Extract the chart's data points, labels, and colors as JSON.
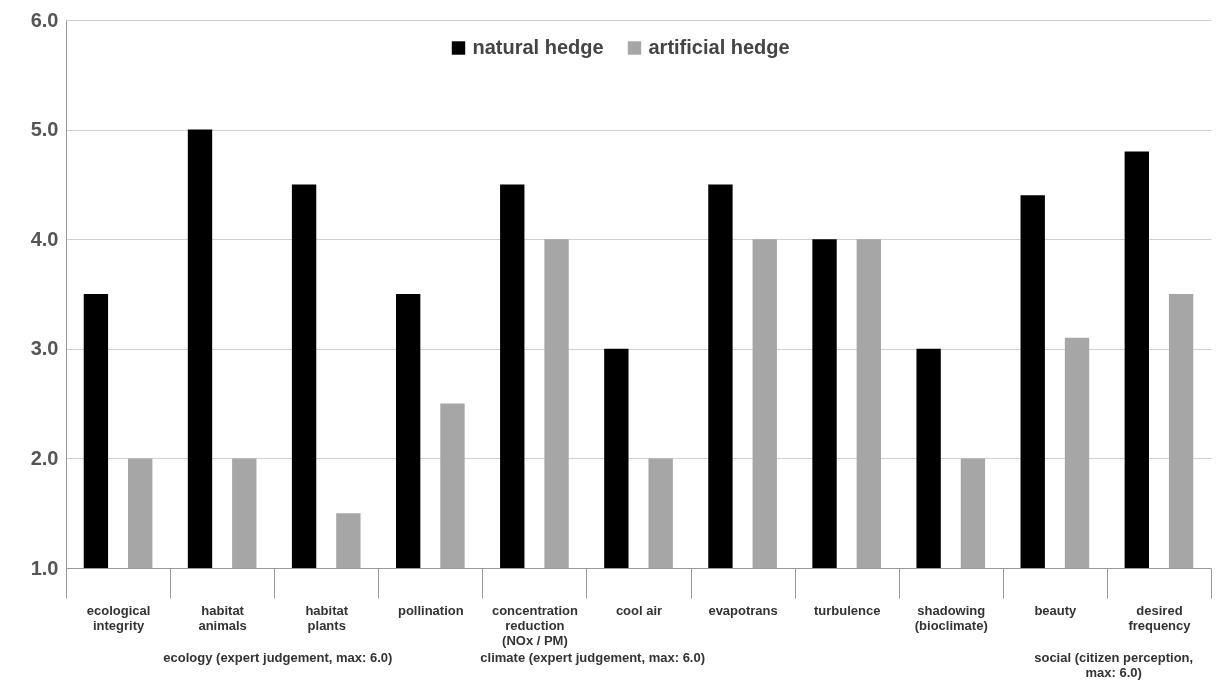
{
  "chart_data": {
    "type": "bar",
    "categories": [
      "ecological integrity",
      "habitat animals",
      "habitat plants",
      "pollination",
      "concentration reduction (NOx / PM)",
      "cool air",
      "evapotrans",
      "turbulence",
      "shadowing (bioclimate)",
      "beauty",
      "desired frequency"
    ],
    "series": [
      {
        "name": "natural hedge",
        "color": "#000000",
        "values": [
          3.5,
          5.0,
          4.5,
          3.5,
          4.5,
          3.0,
          4.5,
          4.0,
          3.0,
          4.4,
          4.8
        ]
      },
      {
        "name": "artificial hedge",
        "color": "#a6a6a6",
        "values": [
          2.0,
          2.0,
          1.5,
          2.5,
          4.0,
          2.0,
          4.0,
          4.0,
          2.0,
          3.1,
          3.5
        ]
      }
    ],
    "ylim": [
      1.0,
      6.0
    ],
    "yticks": [
      {
        "value": 1,
        "label": "1.0"
      },
      {
        "value": 2,
        "label": "2.0"
      },
      {
        "value": 3,
        "label": "3.0"
      },
      {
        "value": 4,
        "label": "4.0"
      },
      {
        "value": 5,
        "label": "5.0"
      },
      {
        "value": 6,
        "label": "6.0"
      }
    ],
    "grid": "y",
    "legend": "top",
    "annotations": [
      "ecology (expert  judgement, max: 6.0)",
      "climate (expert  judgement, max: 6.0)",
      "social (citizen perception, max: 6.0)"
    ]
  }
}
